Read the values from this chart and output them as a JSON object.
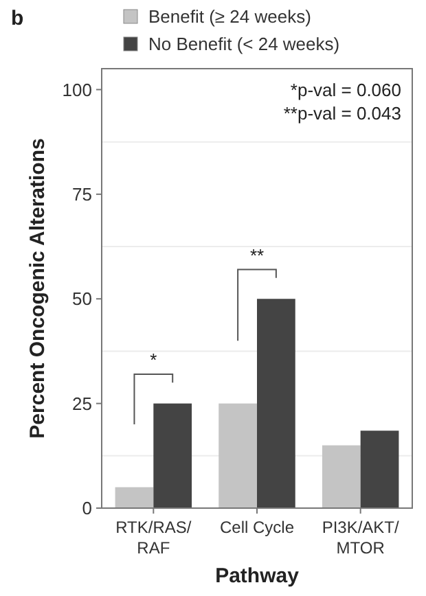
{
  "chart_data": {
    "type": "bar",
    "xlabel": "Pathway",
    "ylabel": "Percent Oncogenic Alterations",
    "categories": [
      "RTK/RAS/\nRAF",
      "Cell Cycle",
      "PI3K/AKT/\nMTOR"
    ],
    "series": [
      {
        "name": "Benefit (≥ 24 weeks)",
        "color": "#c4c4c4",
        "values": [
          5,
          25,
          15
        ]
      },
      {
        "name": "No Benefit (< 24 weeks)",
        "color": "#444444",
        "values": [
          25,
          50,
          18.5
        ]
      }
    ],
    "ylim": [
      0,
      105
    ],
    "yticks": [
      0,
      25,
      50,
      75,
      100
    ],
    "grid": true,
    "legend": "top",
    "annotations": [
      "*",
      "**",
      "*p-val = 0.060",
      "**p-val = 0.043",
      "b"
    ]
  }
}
